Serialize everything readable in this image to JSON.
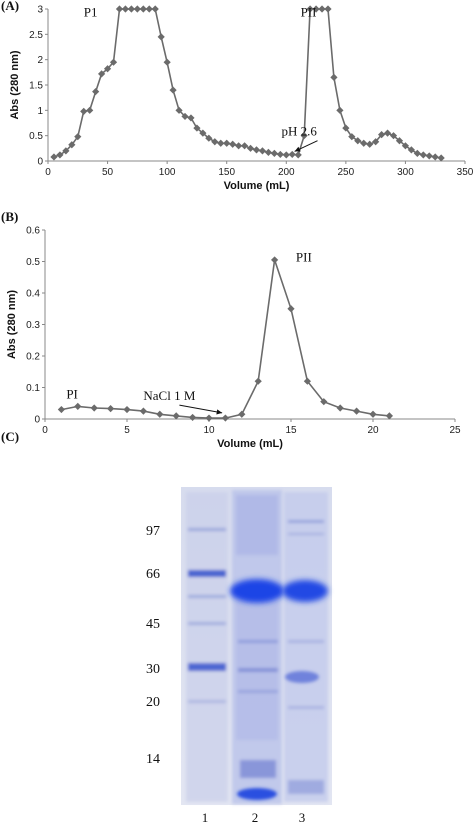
{
  "panels": {
    "a": {
      "label": "(A)"
    },
    "b": {
      "label": "(B)"
    },
    "c": {
      "label": "(C)"
    }
  },
  "chart_data": [
    {
      "type": "line",
      "title": "",
      "xlabel": "Volume (mL)",
      "ylabel": "Abs (280 nm)",
      "xlim": [
        0,
        350
      ],
      "ylim": [
        0,
        3
      ],
      "xticks": [
        "0",
        "50",
        "100",
        "150",
        "200",
        "250",
        "300",
        "350"
      ],
      "yticks": [
        "0",
        "0.5",
        "1",
        "1.5",
        "2",
        "2.5",
        "3"
      ],
      "grid": false,
      "marker": "diamond",
      "color": "#6b6b6b",
      "annotations": [
        {
          "text": "P1",
          "x": 30,
          "y": 2.85
        },
        {
          "text": "PII",
          "x": 212,
          "y": 2.85
        },
        {
          "text": "pH 2.6",
          "x": 196,
          "y": 0.5,
          "arrow_to": [
            207,
            0.13
          ]
        }
      ],
      "series": [
        {
          "x": [
            5,
            10,
            15,
            20,
            25,
            30,
            35,
            40,
            45,
            50,
            55,
            60,
            65,
            70,
            75,
            80,
            85,
            90,
            95,
            100,
            105,
            110,
            115,
            120,
            125,
            130,
            135,
            140,
            145,
            150,
            155,
            160,
            165,
            170,
            175,
            180,
            185,
            190,
            195,
            200,
            205,
            210,
            215,
            220,
            225,
            230,
            235,
            240,
            245,
            250,
            255,
            260,
            265,
            270,
            275,
            280,
            285,
            290,
            295,
            300,
            305,
            310,
            315,
            320,
            325,
            330
          ],
          "y": [
            0.08,
            0.12,
            0.2,
            0.32,
            0.48,
            0.98,
            1.0,
            1.37,
            1.72,
            1.82,
            1.95,
            3.0,
            3.0,
            3.0,
            3.0,
            3.0,
            3.0,
            3.0,
            2.45,
            1.95,
            1.4,
            1.0,
            0.88,
            0.85,
            0.65,
            0.55,
            0.45,
            0.38,
            0.35,
            0.35,
            0.33,
            0.3,
            0.3,
            0.25,
            0.22,
            0.2,
            0.17,
            0.15,
            0.13,
            0.12,
            0.13,
            0.12,
            0.5,
            3.0,
            3.0,
            3.0,
            3.0,
            1.65,
            1.0,
            0.65,
            0.48,
            0.4,
            0.35,
            0.33,
            0.38,
            0.52,
            0.55,
            0.5,
            0.4,
            0.3,
            0.22,
            0.15,
            0.12,
            0.1,
            0.08,
            0.06
          ]
        }
      ]
    },
    {
      "type": "line",
      "title": "",
      "xlabel": "Volume (mL)",
      "ylabel": "Abs (280 nm)",
      "xlim": [
        0,
        25
      ],
      "ylim": [
        0,
        0.6
      ],
      "xticks": [
        "0",
        "5",
        "10",
        "15",
        "20",
        "25"
      ],
      "yticks": [
        "0",
        "0.1",
        "0.2",
        "0.3",
        "0.4",
        "0.5",
        "0.6"
      ],
      "grid": false,
      "marker": "diamond",
      "color": "#6b6b6b",
      "annotations": [
        {
          "text": "PI",
          "x": 1.3,
          "y": 0.065
        },
        {
          "text": "PII",
          "x": 15.3,
          "y": 0.5
        },
        {
          "text": "NaCl 1 M",
          "x": 6.0,
          "y": 0.06,
          "arrow_to": [
            10.8,
            0.01
          ]
        }
      ],
      "series": [
        {
          "x": [
            1,
            2,
            3,
            4,
            5,
            6,
            7,
            8,
            9,
            10,
            11,
            12,
            13,
            14,
            15,
            16,
            17,
            18,
            19,
            20,
            21
          ],
          "y": [
            0.03,
            0.04,
            0.035,
            0.033,
            0.03,
            0.025,
            0.015,
            0.01,
            0.005,
            0.003,
            0.003,
            0.015,
            0.12,
            0.505,
            0.35,
            0.12,
            0.055,
            0.035,
            0.025,
            0.015,
            0.01
          ]
        }
      ]
    }
  ],
  "gel": {
    "mw_markers": [
      "97",
      "66",
      "45",
      "30",
      "20",
      "14"
    ],
    "lanes": [
      "1",
      "2",
      "3"
    ]
  }
}
